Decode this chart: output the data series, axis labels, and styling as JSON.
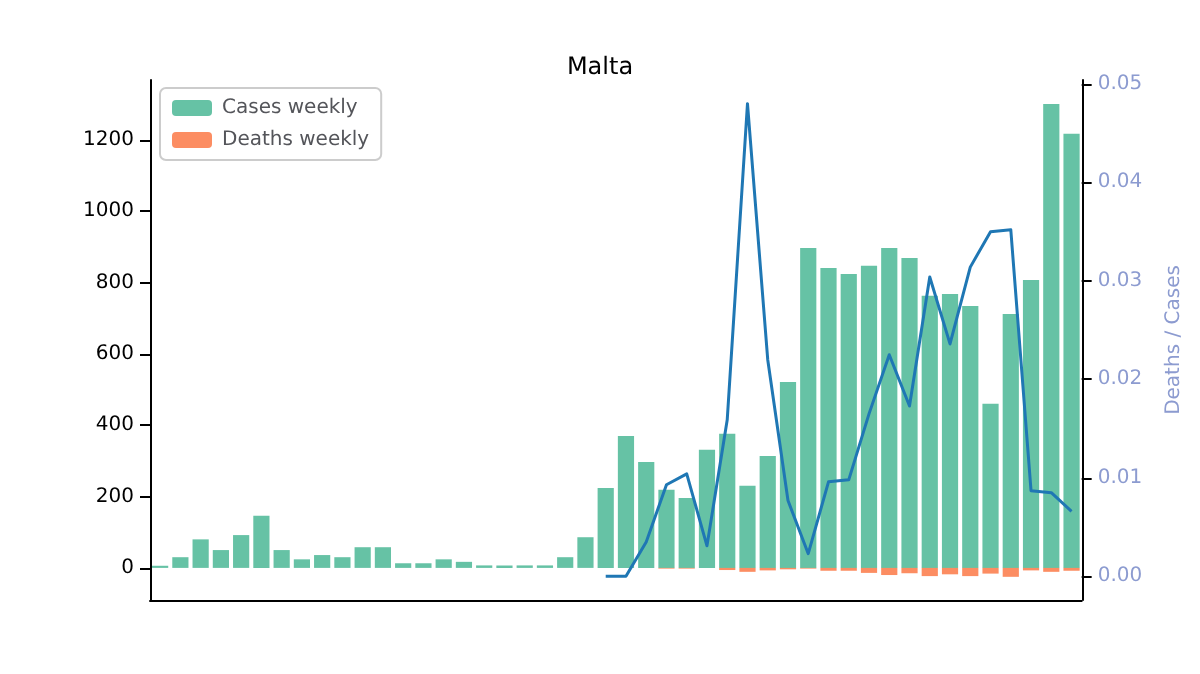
{
  "chart_data": {
    "type": "bar",
    "title": "Malta",
    "y2label": "Deaths / Cases",
    "categories": [
      null,
      null,
      null,
      null,
      null,
      null,
      null,
      null,
      null,
      null,
      null,
      null,
      null,
      null,
      null,
      null,
      null,
      null,
      null,
      null,
      null,
      null,
      null,
      null,
      null,
      null,
      null,
      null,
      null,
      null,
      null,
      null,
      null,
      null,
      null,
      null,
      null,
      null,
      null,
      null,
      null,
      null,
      null,
      null,
      null,
      null
    ],
    "series": [
      {
        "name": "Cases weekly",
        "color": "#66c2a5",
        "values": [
          6,
          30,
          80,
          50,
          92,
          146,
          50,
          24,
          36,
          30,
          58,
          58,
          13,
          13,
          24,
          17,
          7,
          7,
          7,
          7,
          30,
          86,
          224,
          370,
          297,
          219,
          196,
          331,
          376,
          230,
          314,
          521,
          897,
          841,
          824,
          847,
          897,
          869,
          763,
          768,
          734,
          460,
          712,
          807,
          1301,
          1217
        ]
      },
      {
        "name": "Deaths weekly",
        "color": "#fc8d62",
        "values": [
          null,
          null,
          null,
          null,
          null,
          null,
          null,
          null,
          null,
          null,
          null,
          null,
          null,
          null,
          null,
          null,
          null,
          null,
          null,
          null,
          null,
          null,
          0,
          0,
          null,
          -2,
          -2,
          null,
          -6,
          -11,
          -7,
          -4,
          -2,
          -8,
          -8,
          -14,
          -20,
          -15,
          -23,
          -18,
          -23,
          -16,
          -25,
          -7,
          -11,
          -8
        ]
      },
      {
        "type": "line",
        "axis": "y2",
        "color": "#1f77b4",
        "values": [
          null,
          null,
          null,
          null,
          null,
          null,
          null,
          null,
          null,
          null,
          null,
          null,
          null,
          null,
          null,
          null,
          null,
          null,
          null,
          null,
          null,
          null,
          0,
          0,
          0.0035,
          0.0093,
          0.0104,
          0.0031,
          0.0159,
          0.048,
          0.022,
          0.0077,
          0.0023,
          0.0096,
          0.0098,
          0.0165,
          0.0225,
          0.0173,
          0.0304,
          0.0236,
          0.0314,
          0.035,
          0.0352,
          0.0087,
          0.0085,
          0.0066
        ]
      }
    ],
    "ylim": [
      -90,
      1368
    ],
    "yticks": [
      0,
      200,
      400,
      600,
      800,
      1000,
      1200
    ],
    "y2lim": [
      -0.0024,
      0.0504
    ],
    "y2ticks": [
      {
        "value": 0,
        "label": "0.00"
      },
      {
        "value": 0.01,
        "label": "0.01"
      },
      {
        "value": 0.02,
        "label": "0.02"
      },
      {
        "value": 0.03,
        "label": "0.03"
      },
      {
        "value": 0.04,
        "label": "0.04"
      },
      {
        "value": 0.05,
        "label": "0.05"
      }
    ],
    "legend": "top left",
    "marker": "none",
    "grid": false
  }
}
